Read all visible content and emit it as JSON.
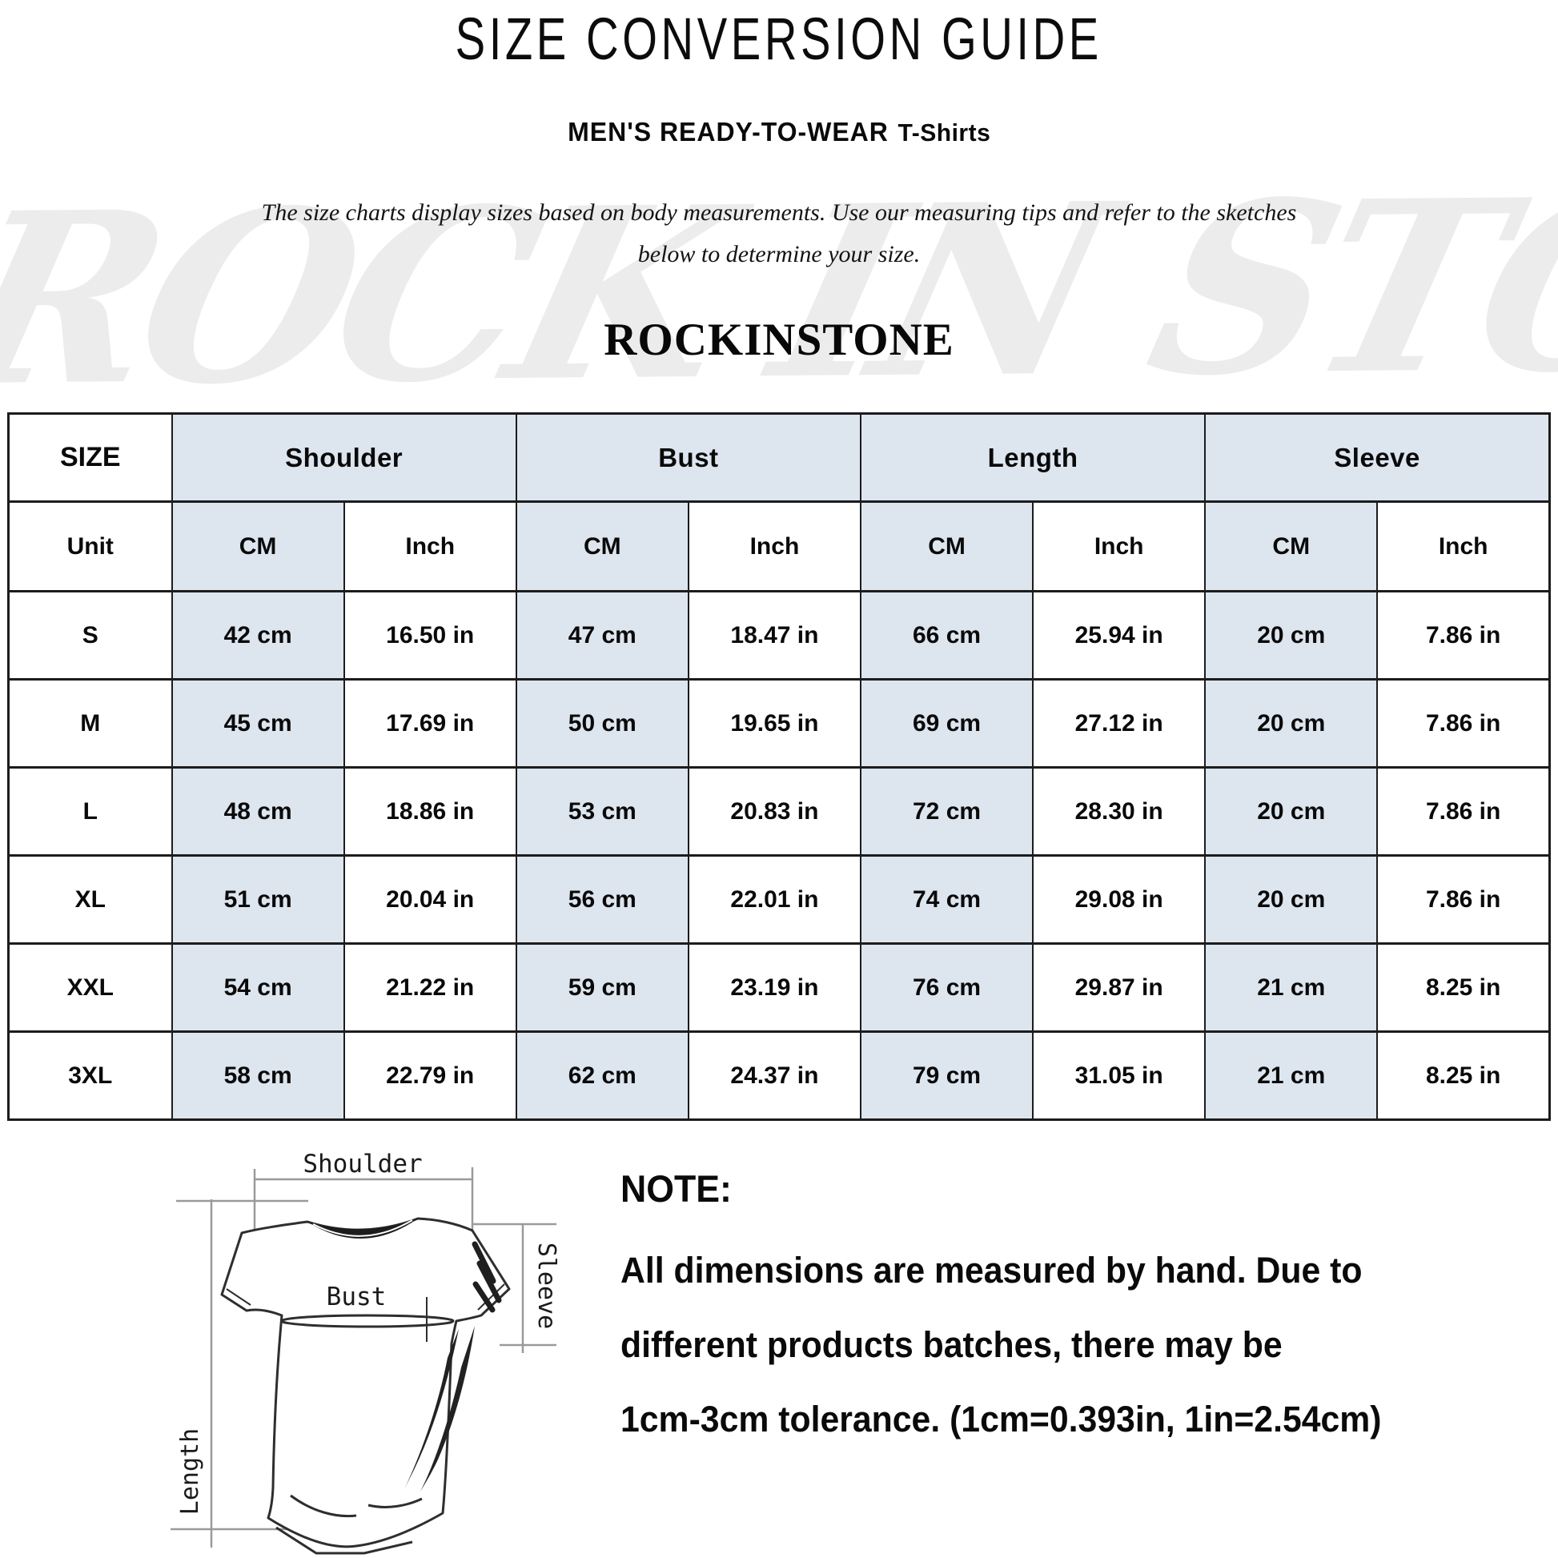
{
  "header": {
    "title": "SIZE CONVERSION GUIDE",
    "subtitle": "MEN'S READY-TO-WEAR",
    "subtitle_item": "T-Shirts",
    "intro_line1": "The size charts display sizes based on body measurements.  Use our measuring tips and refer to the sketches",
    "intro_line2": "below to determine your size.",
    "brand": "ROCKINSTONE",
    "watermark": "ROCK IN STONE"
  },
  "table": {
    "size_header": "SIZE",
    "unit_label": "Unit",
    "cm_label": "CM",
    "inch_label": "Inch",
    "groups": [
      "Shoulder",
      "Bust",
      "Length",
      "Sleeve"
    ],
    "rows": [
      {
        "size": "S",
        "values": [
          "42 cm",
          "16.50 in",
          "47 cm",
          "18.47 in",
          "66 cm",
          "25.94 in",
          "20 cm",
          "7.86 in"
        ]
      },
      {
        "size": "M",
        "values": [
          "45 cm",
          "17.69 in",
          "50 cm",
          "19.65 in",
          "69 cm",
          "27.12 in",
          "20 cm",
          "7.86 in"
        ]
      },
      {
        "size": "L",
        "values": [
          "48 cm",
          "18.86 in",
          "53 cm",
          "20.83 in",
          "72 cm",
          "28.30 in",
          "20 cm",
          "7.86 in"
        ]
      },
      {
        "size": "XL",
        "values": [
          "51 cm",
          "20.04 in",
          "56 cm",
          "22.01 in",
          "74 cm",
          "29.08 in",
          "20 cm",
          "7.86 in"
        ]
      },
      {
        "size": "XXL",
        "values": [
          "54 cm",
          "21.22 in",
          "59 cm",
          "23.19 in",
          "76 cm",
          "29.87 in",
          "21 cm",
          "8.25 in"
        ]
      },
      {
        "size": "3XL",
        "values": [
          "58 cm",
          "22.79 in",
          "62 cm",
          "24.37 in",
          "79 cm",
          "31.05 in",
          "21 cm",
          "8.25 in"
        ]
      }
    ]
  },
  "diagram": {
    "shoulder_label": "Shoulder",
    "bust_label": "Bust",
    "length_label": "Length",
    "sleeve_label": "Sleeve"
  },
  "note": {
    "heading": "NOTE:",
    "line1": "All dimensions are measured by hand. Due to",
    "line2": "different products batches, there may be",
    "line3": "1cm-3cm tolerance. (1cm=0.393in, 1in=2.54cm)"
  },
  "colors": {
    "highlight_blue": "#dde5ef",
    "border_dark": "#1c1c1c",
    "watermark_gray": "#ececec"
  }
}
